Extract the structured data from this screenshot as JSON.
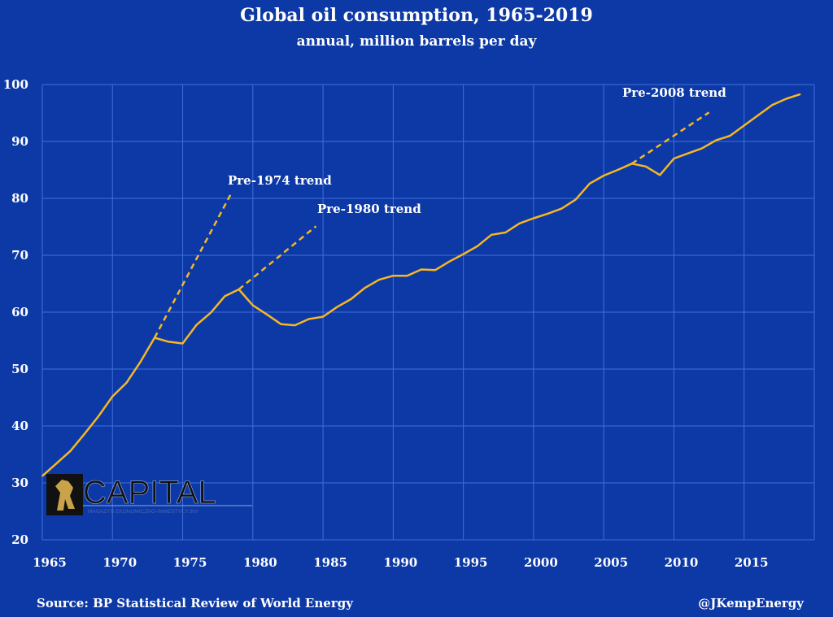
{
  "chart_data": {
    "type": "line",
    "title": "Global oil consumption, 1965-2019",
    "subtitle": "annual, million barrels per day",
    "xlabel": "",
    "ylabel": "",
    "xlim": [
      1965,
      2020
    ],
    "ylim": [
      20,
      100
    ],
    "grid": true,
    "x_ticks": [
      "1965",
      "1970",
      "1975",
      "1980",
      "1985",
      "1990",
      "1995",
      "2000",
      "2005",
      "2010",
      "2015"
    ],
    "y_ticks": [
      "20",
      "30",
      "40",
      "50",
      "60",
      "70",
      "80",
      "90",
      "100"
    ],
    "colors": {
      "background": "#0c39a6",
      "grid": "#3f6fdc",
      "line": "#f6b723"
    },
    "series": [
      {
        "x": [
          1965,
          1966,
          1967,
          1968,
          1969,
          1970,
          1971,
          1972,
          1973,
          1974,
          1975,
          1976,
          1977,
          1978,
          1979,
          1980,
          1981,
          1982,
          1983,
          1984,
          1985,
          1986,
          1987,
          1988,
          1989,
          1990,
          1991,
          1992,
          1993,
          1994,
          1995,
          1996,
          1997,
          1998,
          1999,
          2000,
          2001,
          2002,
          2003,
          2004,
          2005,
          2006,
          2007,
          2008,
          2009,
          2010,
          2011,
          2012,
          2013,
          2014,
          2015,
          2016,
          2017,
          2018,
          2019
        ],
        "y": [
          31.2,
          33.4,
          35.6,
          38.6,
          41.7,
          45.2,
          47.6,
          51.3,
          55.5,
          54.8,
          54.5,
          57.8,
          59.9,
          62.8,
          64.0,
          61.2,
          59.6,
          57.9,
          57.7,
          58.8,
          59.2,
          60.9,
          62.3,
          64.3,
          65.7,
          66.4,
          66.4,
          67.5,
          67.4,
          68.9,
          70.2,
          71.6,
          73.6,
          74.0,
          75.6,
          76.5,
          77.3,
          78.2,
          79.8,
          82.6,
          84.0,
          85.0,
          86.1,
          85.6,
          84.1,
          87.0,
          87.9,
          88.8,
          90.2,
          91.0,
          92.8,
          94.6,
          96.4,
          97.5,
          98.3
        ]
      }
    ],
    "trend_lines": [
      {
        "label": "Pre-1974 trend",
        "from": [
          1973,
          55.5
        ],
        "to": [
          1978.4,
          80.6
        ]
      },
      {
        "label": "Pre-1980 trend",
        "from": [
          1979,
          64.0
        ],
        "to": [
          1984.5,
          75.1
        ]
      },
      {
        "label": "Pre-2008 trend",
        "from": [
          2007,
          86.1
        ],
        "to": [
          2012.5,
          95.1
        ]
      }
    ],
    "source": "Source: BP Statistical Review of World Energy",
    "credit": "@JKempEnergy"
  },
  "logo": {
    "text": "CAPITAL",
    "tagline": "MAGAZYN EKONOMICZNO-INWESTYCYJNY"
  }
}
